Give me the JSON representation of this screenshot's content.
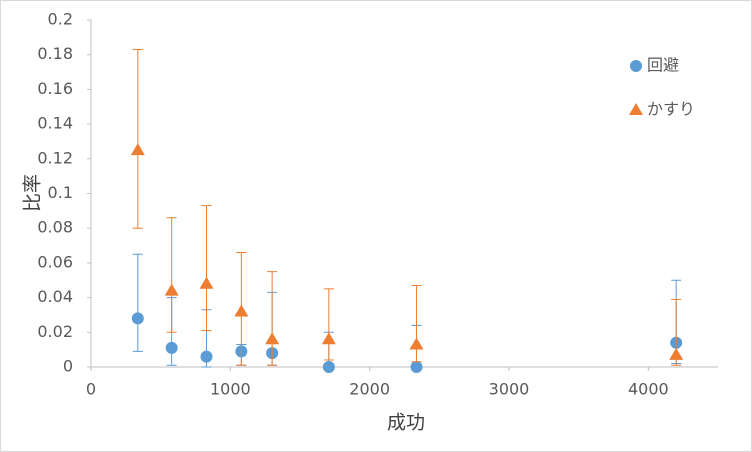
{
  "chart_data": {
    "type": "scatter",
    "xlabel": "成功",
    "ylabel": "比率",
    "x": [
      336,
      579,
      829,
      1079,
      1300,
      1707,
      2336,
      4200
    ],
    "series": [
      {
        "name": "回避",
        "color": "#5b9bd5",
        "marker": "circle",
        "values": [
          0.028,
          0.011,
          0.006,
          0.009,
          0.008,
          0,
          0,
          0.014
        ],
        "error_plus": [
          0.037,
          0.029,
          0.027,
          0.004,
          0.035,
          0.02,
          0.024,
          0.036
        ],
        "error_minus": [
          0.019,
          0.01,
          0.006,
          0.008,
          0.007,
          0,
          0,
          0.012
        ]
      },
      {
        "name": "かすり",
        "color": "#ed7d31",
        "marker": "triangle",
        "values": [
          0.125,
          0.044,
          0.048,
          0.032,
          0.016,
          0.016,
          0.013,
          0.007
        ],
        "error_plus": [
          0.058,
          0.042,
          0.045,
          0.034,
          0.039,
          0.029,
          0.034,
          0.032
        ],
        "error_minus": [
          0.045,
          0.024,
          0.027,
          0.031,
          0.015,
          0.012,
          0.01,
          0.006
        ]
      }
    ],
    "xlim": [
      0,
      4500
    ],
    "xticks": [
      0,
      1000,
      2000,
      3000,
      4000
    ],
    "ylim": [
      0,
      0.2
    ],
    "yticks": [
      0,
      0.02,
      0.04,
      0.06,
      0.08,
      0.1,
      0.12,
      0.14,
      0.16,
      0.18,
      0.2
    ],
    "grid": false,
    "legend": "upper right"
  }
}
